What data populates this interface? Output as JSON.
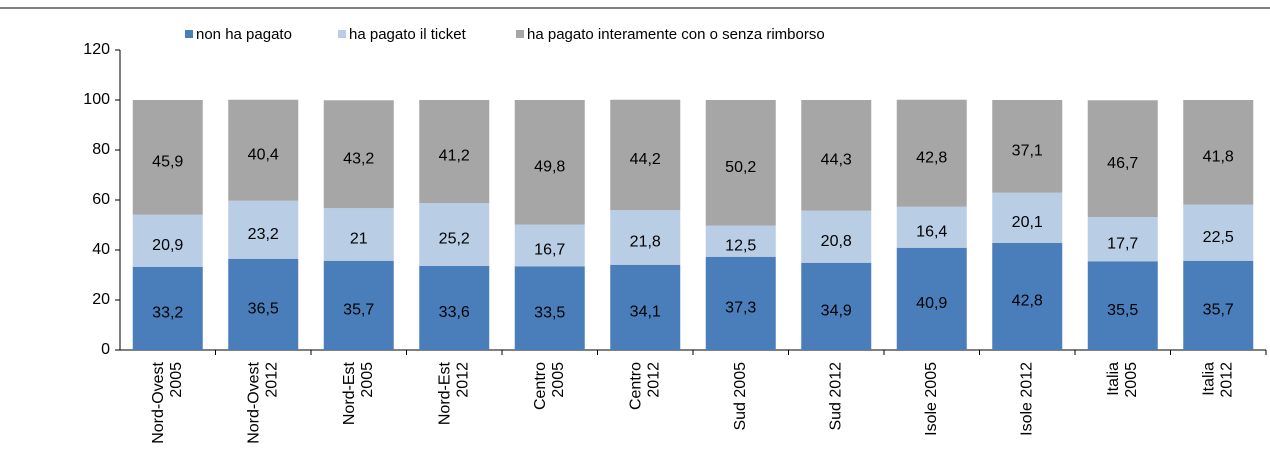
{
  "chart_data": {
    "type": "stacked-bar",
    "categories": [
      "Nord-Ovest 2005",
      "Nord-Ovest 2012",
      "Nord-Est 2005",
      "Nord-Est 2012",
      "Centro 2005",
      "Centro 2012",
      "Sud 2005",
      "Sud 2012",
      "Isole 2005",
      "Isole 2012",
      "Italia 2005",
      "Italia 2012"
    ],
    "series": [
      {
        "name": "non ha pagato",
        "color": "#4a7ebb",
        "values": [
          33.2,
          36.5,
          35.7,
          33.6,
          33.5,
          34.1,
          37.3,
          34.9,
          40.9,
          42.8,
          35.5,
          35.7
        ],
        "value_labels": [
          "33,2",
          "36,5",
          "35,7",
          "33,6",
          "33,5",
          "34,1",
          "37,3",
          "34,9",
          "40,9",
          "42,8",
          "35,5",
          "35,7"
        ]
      },
      {
        "name": "ha pagato il ticket",
        "color": "#b9cde5",
        "values": [
          20.9,
          23.2,
          21,
          25.2,
          16.7,
          21.8,
          12.5,
          20.8,
          16.4,
          20.1,
          17.7,
          22.5
        ],
        "value_labels": [
          "20,9",
          "23,2",
          "21",
          "25,2",
          "16,7",
          "21,8",
          "12,5",
          "20,8",
          "16,4",
          "20,1",
          "17,7",
          "22,5"
        ]
      },
      {
        "name": "ha pagato interamente con o senza rimborso",
        "color": "#a6a6a6",
        "values": [
          45.9,
          40.4,
          43.2,
          41.2,
          49.8,
          44.2,
          50.2,
          44.3,
          42.8,
          37.1,
          46.7,
          41.8
        ],
        "value_labels": [
          "45,9",
          "40,4",
          "43,2",
          "41,2",
          "49,8",
          "44,2",
          "50,2",
          "44,3",
          "42,8",
          "37,1",
          "46,7",
          "41,8"
        ]
      }
    ],
    "ylim": [
      0,
      120
    ],
    "yticks": [
      0,
      20,
      40,
      60,
      80,
      100,
      120
    ]
  }
}
